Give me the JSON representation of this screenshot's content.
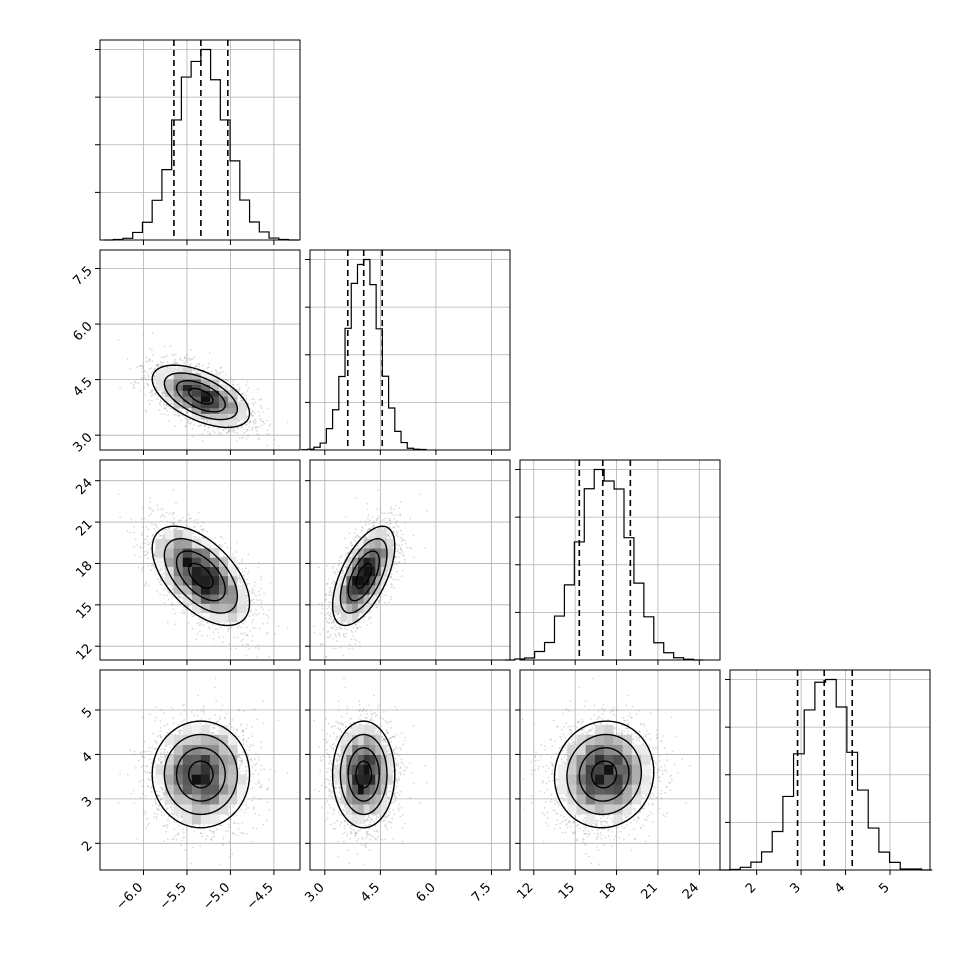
{
  "chart_data": {
    "type": "corner",
    "grid": true,
    "parameters": [
      {
        "range": [
          -6.5,
          -4.2
        ],
        "ticks": [
          -6.0,
          -5.5,
          -5.0,
          -4.5
        ],
        "tick_labels": [
          "−6.0",
          "−5.5",
          "−5.0",
          "−4.5"
        ],
        "mean": -5.34,
        "sd": 0.28,
        "quantiles": [
          -5.65,
          -5.34,
          -5.03
        ]
      },
      {
        "range": [
          2.6,
          8.0
        ],
        "ticks": [
          3.0,
          4.5,
          6.0,
          7.5
        ],
        "tick_labels": [
          "3.0",
          "4.5",
          "6.0",
          "7.5"
        ],
        "mean": 4.05,
        "sd": 0.42,
        "quantiles": [
          3.62,
          4.05,
          4.55
        ]
      },
      {
        "range": [
          11.0,
          25.5
        ],
        "ticks": [
          12,
          15,
          18,
          21,
          24
        ],
        "tick_labels": [
          "12",
          "15",
          "18",
          "21",
          "24"
        ],
        "mean": 17.1,
        "sd": 1.8,
        "quantiles": [
          15.3,
          17.0,
          19.0
        ]
      },
      {
        "range": [
          1.4,
          5.9
        ],
        "ticks": [
          2,
          3,
          4,
          5
        ],
        "tick_labels": [
          "2",
          "3",
          "4",
          "5"
        ],
        "mean": 3.55,
        "sd": 0.6,
        "quantiles": [
          2.92,
          3.52,
          4.15
        ]
      }
    ],
    "correlations": [
      [
        1,
        -0.55,
        -0.55,
        0.0
      ],
      [
        -0.55,
        1,
        0.6,
        0.0
      ],
      [
        -0.55,
        0.6,
        1,
        0.05
      ],
      [
        0.0,
        0.0,
        0.05,
        1
      ]
    ],
    "contour_levels_sigma": [
      0.5,
      1.0,
      1.5,
      2.0
    ],
    "histogram_bins": 20,
    "n_samples": 5000
  }
}
